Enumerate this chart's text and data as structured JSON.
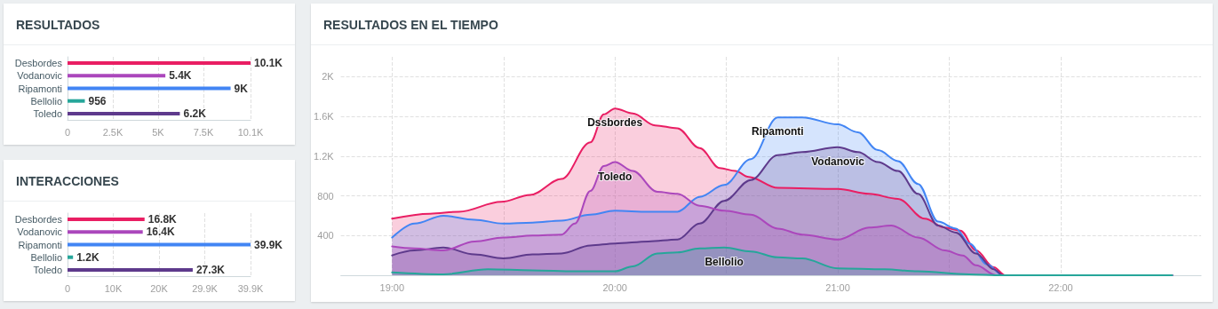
{
  "chart_data": [
    {
      "type": "bar",
      "title": "RESULTADOS",
      "orientation": "horizontal",
      "categories": [
        "Desbordes",
        "Vodanovic",
        "Ripamonti",
        "Bellolio",
        "Toledo"
      ],
      "values": [
        10100,
        5400,
        9000,
        956,
        6200
      ],
      "colors": [
        "#e91e63",
        "#ab47bc",
        "#4285f4",
        "#26a69a",
        "#5e3a8c"
      ],
      "value_labels": [
        "10.1K",
        "5.4K",
        "9K",
        "956",
        "6.2K"
      ],
      "xlim": [
        0,
        10100
      ],
      "xticks": [
        0,
        {
          "value": 2500,
          "label": "2.5K"
        },
        {
          "value": 5000,
          "label": "5K"
        },
        {
          "value": 7500,
          "label": "7.5K"
        },
        {
          "value": 10100,
          "label": "10.1K"
        }
      ],
      "grid": "x"
    },
    {
      "type": "bar",
      "title": "INTERACCIONES",
      "orientation": "horizontal",
      "categories": [
        "Desbordes",
        "Vodanovic",
        "Ripamonti",
        "Bellolio",
        "Toledo"
      ],
      "values": [
        16800,
        16400,
        39900,
        1200,
        27300
      ],
      "colors": [
        "#e91e63",
        "#ab47bc",
        "#4285f4",
        "#26a69a",
        "#5e3a8c"
      ],
      "value_labels": [
        "16.8K",
        "16.4K",
        "39.9K",
        "1.2K",
        "27.3K"
      ],
      "xlim": [
        0,
        39900
      ],
      "xticks": [
        0,
        {
          "value": 9975,
          "label": "10K"
        },
        {
          "value": 19950,
          "label": "20K"
        },
        {
          "value": 29925,
          "label": "29.9K"
        },
        {
          "value": 39900,
          "label": "39.9K"
        }
      ],
      "grid": "x"
    },
    {
      "type": "area",
      "title": "RESULTADOS EN EL TIEMPO",
      "marker": "none",
      "line_style": "solid",
      "grid": true,
      "xlim": [
        18.77,
        22.63
      ],
      "xticks": [
        {
          "value": 19,
          "label": "19:00"
        },
        {
          "value": 19.5,
          "label": null
        },
        {
          "value": 20,
          "label": "20:00"
        },
        {
          "value": 20.5,
          "label": null
        },
        {
          "value": 21,
          "label": "21:00"
        },
        {
          "value": 21.5,
          "label": null
        },
        {
          "value": 22,
          "label": "22:00"
        }
      ],
      "ylim": [
        0,
        2200
      ],
      "yticks": [
        400,
        800,
        {
          "value": 1200,
          "label": "1.2K"
        },
        {
          "value": 1600,
          "label": "1.6K"
        },
        {
          "value": 2000,
          "label": "2K"
        }
      ],
      "series": [
        {
          "name": "Dssbordes",
          "color": "#e91e63",
          "x": [
            19,
            19.17,
            19.3,
            19.49,
            19.62,
            19.76,
            19.89,
            19.95,
            20,
            20.08,
            20.18,
            20.28,
            20.38,
            20.47,
            20.54,
            20.6,
            20.73,
            21,
            21.14,
            21.27,
            21.39,
            21.48,
            21.55,
            21.62,
            21.7,
            21.75,
            22.5
          ],
          "values": [
            570,
            620,
            640,
            740,
            810,
            970,
            1340,
            1620,
            1680,
            1630,
            1510,
            1480,
            1280,
            1080,
            1050,
            990,
            880,
            870,
            820,
            770,
            570,
            480,
            450,
            250,
            80,
            0,
            0
          ]
        },
        {
          "name": "Ripamonti",
          "color": "#4285f4",
          "x": [
            19,
            19.1,
            19.23,
            19.37,
            19.5,
            19.63,
            19.76,
            19.89,
            20,
            20.15,
            20.28,
            20.38,
            20.49,
            20.61,
            20.73,
            20.84,
            21,
            21.09,
            21.18,
            21.27,
            21.36,
            21.45,
            21.53,
            21.59,
            21.67,
            21.74,
            22.5
          ],
          "values": [
            380,
            520,
            600,
            560,
            520,
            530,
            550,
            610,
            650,
            640,
            640,
            790,
            910,
            1170,
            1590,
            1590,
            1520,
            1440,
            1260,
            1150,
            920,
            540,
            470,
            320,
            110,
            0,
            0
          ]
        },
        {
          "name": "Vodanovic",
          "color": "#5e3a8c",
          "x": [
            19,
            19.1,
            19.23,
            19.37,
            19.5,
            19.63,
            19.76,
            19.89,
            20,
            20.15,
            20.28,
            20.38,
            20.49,
            20.61,
            20.73,
            20.84,
            21,
            21.09,
            21.18,
            21.27,
            21.36,
            21.45,
            21.53,
            21.62,
            21.7,
            21.74,
            22.5
          ],
          "values": [
            200,
            250,
            280,
            210,
            170,
            210,
            220,
            300,
            320,
            340,
            360,
            520,
            750,
            960,
            1210,
            1240,
            1290,
            1240,
            1140,
            1050,
            820,
            500,
            430,
            220,
            60,
            0,
            0
          ]
        },
        {
          "name": "Toledo",
          "color": "#ab47bc",
          "x": [
            19,
            19.1,
            19.23,
            19.37,
            19.5,
            19.63,
            19.76,
            19.82,
            19.89,
            19.95,
            20,
            20.08,
            20.19,
            20.28,
            20.38,
            20.49,
            20.61,
            20.73,
            20.84,
            21,
            21.14,
            21.24,
            21.36,
            21.48,
            21.56,
            21.62,
            21.71,
            22.5
          ],
          "values": [
            290,
            270,
            250,
            340,
            380,
            400,
            410,
            520,
            850,
            1100,
            1140,
            1050,
            840,
            820,
            700,
            650,
            610,
            470,
            410,
            360,
            480,
            500,
            380,
            250,
            200,
            100,
            0,
            0
          ]
        },
        {
          "name": "Bellolio",
          "color": "#26a69a",
          "x": [
            19,
            19.23,
            19.43,
            19.63,
            19.82,
            20,
            20.08,
            20.19,
            20.28,
            20.38,
            20.49,
            20.61,
            20.73,
            20.84,
            21,
            21.21,
            21.36,
            21.59,
            21.74,
            22.5
          ],
          "values": [
            30,
            10,
            60,
            50,
            40,
            40,
            90,
            220,
            230,
            270,
            280,
            240,
            180,
            170,
            70,
            60,
            40,
            10,
            0,
            0
          ]
        }
      ]
    }
  ]
}
